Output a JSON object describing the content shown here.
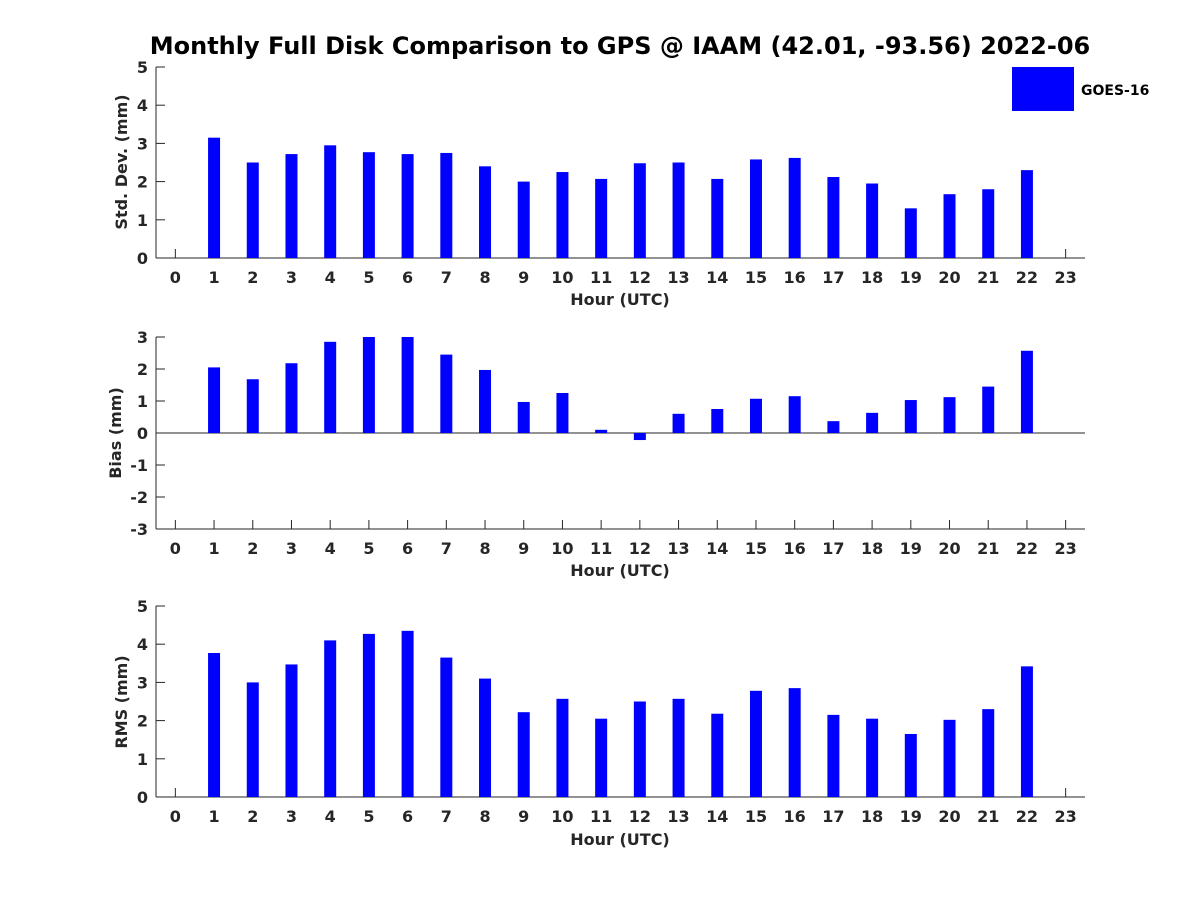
{
  "figure": {
    "title": "Monthly Full Disk Comparison to GPS @ IAAM (42.01, -93.56) 2022-06",
    "bar_color": "#0000ff",
    "legend": {
      "label": "GOES-16",
      "placement": "top-right"
    }
  },
  "chart_data": [
    {
      "type": "bar",
      "panel": "std-dev",
      "xlabel": "Hour (UTC)",
      "ylabel": "Std. Dev. (mm)",
      "x": [
        0,
        1,
        2,
        3,
        4,
        5,
        6,
        7,
        8,
        9,
        10,
        11,
        12,
        13,
        14,
        15,
        16,
        17,
        18,
        19,
        20,
        21,
        22,
        23
      ],
      "xlim": [
        -0.5,
        23.5
      ],
      "ylim": [
        0,
        5
      ],
      "yticks": [
        0,
        1,
        2,
        3,
        4,
        5
      ],
      "series": [
        {
          "name": "GOES-16",
          "values": [
            null,
            3.15,
            2.5,
            2.72,
            2.95,
            2.77,
            2.72,
            2.75,
            2.4,
            2.0,
            2.25,
            2.07,
            2.48,
            2.5,
            2.07,
            2.58,
            2.62,
            2.12,
            1.95,
            1.3,
            1.67,
            1.8,
            2.3,
            null
          ]
        }
      ]
    },
    {
      "type": "bar",
      "panel": "bias",
      "xlabel": "Hour (UTC)",
      "ylabel": "Bias (mm)",
      "x": [
        0,
        1,
        2,
        3,
        4,
        5,
        6,
        7,
        8,
        9,
        10,
        11,
        12,
        13,
        14,
        15,
        16,
        17,
        18,
        19,
        20,
        21,
        22,
        23
      ],
      "xlim": [
        -0.5,
        23.5
      ],
      "ylim": [
        -3,
        3
      ],
      "yticks": [
        -3,
        -2,
        -1,
        0,
        1,
        2,
        3
      ],
      "zero_line": true,
      "series": [
        {
          "name": "GOES-16",
          "values": [
            null,
            2.05,
            1.68,
            2.18,
            2.85,
            3.0,
            3.0,
            2.45,
            1.97,
            0.97,
            1.25,
            0.1,
            -0.22,
            0.6,
            0.75,
            1.07,
            1.15,
            0.37,
            0.63,
            1.03,
            1.12,
            1.45,
            2.57,
            null
          ]
        }
      ]
    },
    {
      "type": "bar",
      "panel": "rms",
      "xlabel": "Hour (UTC)",
      "ylabel": "RMS (mm)",
      "x": [
        0,
        1,
        2,
        3,
        4,
        5,
        6,
        7,
        8,
        9,
        10,
        11,
        12,
        13,
        14,
        15,
        16,
        17,
        18,
        19,
        20,
        21,
        22,
        23
      ],
      "xlim": [
        -0.5,
        23.5
      ],
      "ylim": [
        0,
        5
      ],
      "yticks": [
        0,
        1,
        2,
        3,
        4,
        5
      ],
      "series": [
        {
          "name": "GOES-16",
          "values": [
            null,
            3.77,
            3.0,
            3.47,
            4.1,
            4.27,
            4.35,
            3.65,
            3.1,
            2.22,
            2.57,
            2.05,
            2.5,
            2.57,
            2.18,
            2.78,
            2.85,
            2.15,
            2.05,
            1.65,
            2.02,
            2.3,
            3.42,
            null
          ]
        }
      ]
    }
  ]
}
